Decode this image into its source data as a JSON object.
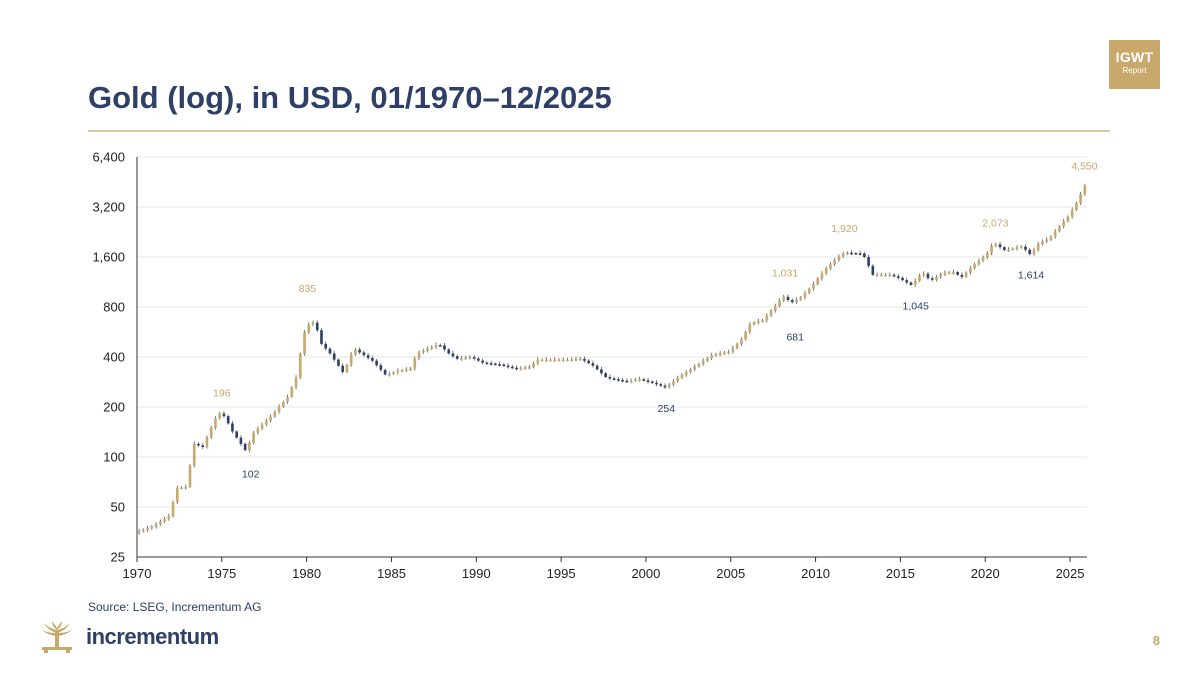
{
  "header": {
    "title": "Gold (log), in USD, 01/1970–12/2025",
    "badge_line1": "IGWT",
    "badge_line2": "Report"
  },
  "footer": {
    "source": "Source: LSEG, Incrementum AG",
    "brand": "incrementum",
    "page_number": "8"
  },
  "colors": {
    "up": "#c9a96b",
    "down": "#2e4068",
    "grid": "#e6e6e6",
    "axis": "#333333",
    "title": "#2e4068",
    "accent": "#c9a96b"
  },
  "chart_data": {
    "type": "candlestick",
    "title": "Gold (log), in USD, 01/1970–12/2025",
    "xlabel": "",
    "ylabel": "",
    "y_scale": "log",
    "ylim": [
      25,
      6400
    ],
    "xlim": [
      1970,
      2026
    ],
    "grid": "horizontal",
    "y_ticks": [
      25,
      50,
      100,
      200,
      400,
      800,
      1600,
      3200,
      6400
    ],
    "y_tick_labels": [
      "25",
      "50",
      "100",
      "200",
      "400",
      "800",
      "1,600",
      "3,200",
      "6,400"
    ],
    "x_ticks": [
      1970,
      1975,
      1980,
      1985,
      1990,
      1995,
      2000,
      2005,
      2010,
      2015,
      2020,
      2025
    ],
    "x_tick_labels": [
      "1970",
      "1975",
      "1980",
      "1985",
      "1990",
      "1995",
      "2000",
      "2005",
      "2010",
      "2015",
      "2020",
      "2025"
    ],
    "candle_interval": "quarter",
    "anchors": [
      [
        1970.0,
        35
      ],
      [
        1971.0,
        38
      ],
      [
        1972.0,
        44
      ],
      [
        1972.5,
        65
      ],
      [
        1973.0,
        66
      ],
      [
        1973.5,
        120
      ],
      [
        1974.0,
        115
      ],
      [
        1974.9,
        185
      ],
      [
        1975.3,
        175
      ],
      [
        1975.7,
        145
      ],
      [
        1976.5,
        110
      ],
      [
        1976.7,
        118
      ],
      [
        1977.0,
        140
      ],
      [
        1978.0,
        175
      ],
      [
        1979.0,
        230
      ],
      [
        1979.5,
        300
      ],
      [
        1979.9,
        510
      ],
      [
        1980.1,
        620
      ],
      [
        1980.6,
        650
      ],
      [
        1981.0,
        480
      ],
      [
        1981.5,
        420
      ],
      [
        1982.3,
        320
      ],
      [
        1982.9,
        450
      ],
      [
        1983.5,
        410
      ],
      [
        1984.0,
        380
      ],
      [
        1984.8,
        310
      ],
      [
        1985.5,
        330
      ],
      [
        1986.3,
        340
      ],
      [
        1986.6,
        420
      ],
      [
        1987.5,
        460
      ],
      [
        1987.9,
        480
      ],
      [
        1988.5,
        420
      ],
      [
        1989.0,
        390
      ],
      [
        1989.8,
        400
      ],
      [
        1990.5,
        370
      ],
      [
        1991.5,
        360
      ],
      [
        1992.5,
        340
      ],
      [
        1993.4,
        350
      ],
      [
        1993.6,
        385
      ],
      [
        1994.5,
        385
      ],
      [
        1995.5,
        385
      ],
      [
        1996.3,
        390
      ],
      [
        1997.0,
        355
      ],
      [
        1997.8,
        300
      ],
      [
        1999.0,
        285
      ],
      [
        1999.7,
        295
      ],
      [
        2000.5,
        280
      ],
      [
        2001.3,
        262
      ],
      [
        2002.0,
        300
      ],
      [
        2003.0,
        350
      ],
      [
        2004.0,
        410
      ],
      [
        2005.0,
        430
      ],
      [
        2005.7,
        500
      ],
      [
        2006.3,
        640
      ],
      [
        2007.0,
        665
      ],
      [
        2007.7,
        800
      ],
      [
        2008.2,
        930
      ],
      [
        2008.7,
        850
      ],
      [
        2009.3,
        920
      ],
      [
        2010.0,
        1100
      ],
      [
        2010.7,
        1350
      ],
      [
        2011.5,
        1620
      ],
      [
        2011.9,
        1700
      ],
      [
        2012.6,
        1680
      ],
      [
        2012.9,
        1680
      ],
      [
        2013.2,
        1450
      ],
      [
        2013.5,
        1250
      ],
      [
        2014.5,
        1250
      ],
      [
        2015.0,
        1200
      ],
      [
        2015.8,
        1080
      ],
      [
        2016.4,
        1300
      ],
      [
        2016.9,
        1150
      ],
      [
        2017.6,
        1280
      ],
      [
        2018.3,
        1300
      ],
      [
        2018.7,
        1200
      ],
      [
        2019.5,
        1450
      ],
      [
        2020.2,
        1650
      ],
      [
        2020.6,
        1950
      ],
      [
        2021.3,
        1750
      ],
      [
        2021.9,
        1820
      ],
      [
        2022.3,
        1850
      ],
      [
        2022.8,
        1650
      ],
      [
        2023.3,
        1950
      ],
      [
        2023.9,
        2060
      ],
      [
        2024.5,
        2450
      ],
      [
        2025.0,
        2800
      ],
      [
        2025.6,
        3500
      ],
      [
        2025.95,
        4300
      ]
    ],
    "annotations": [
      {
        "label": "196",
        "year": 1975.0,
        "value": 196,
        "position": "above",
        "color": "up"
      },
      {
        "label": "102",
        "year": 1976.7,
        "value": 102,
        "position": "below",
        "color": "down"
      },
      {
        "label": "835",
        "year": 1980.05,
        "value": 835,
        "position": "above",
        "color": "up"
      },
      {
        "label": "254",
        "year": 2001.2,
        "value": 254,
        "position": "below",
        "color": "down"
      },
      {
        "label": "1,031",
        "year": 2008.2,
        "value": 1031,
        "position": "above",
        "color": "up"
      },
      {
        "label": "681",
        "year": 2008.8,
        "value": 681,
        "position": "below",
        "color": "down"
      },
      {
        "label": "1,920",
        "year": 2011.7,
        "value": 1920,
        "position": "above",
        "color": "up"
      },
      {
        "label": "1,045",
        "year": 2015.9,
        "value": 1045,
        "position": "below",
        "color": "down"
      },
      {
        "label": "2,073",
        "year": 2020.6,
        "value": 2073,
        "position": "above",
        "color": "up"
      },
      {
        "label": "1,614",
        "year": 2022.7,
        "value": 1614,
        "position": "below",
        "color": "down"
      },
      {
        "label": "4,550",
        "year": 2025.85,
        "value": 4550,
        "position": "above",
        "color": "up"
      }
    ]
  }
}
